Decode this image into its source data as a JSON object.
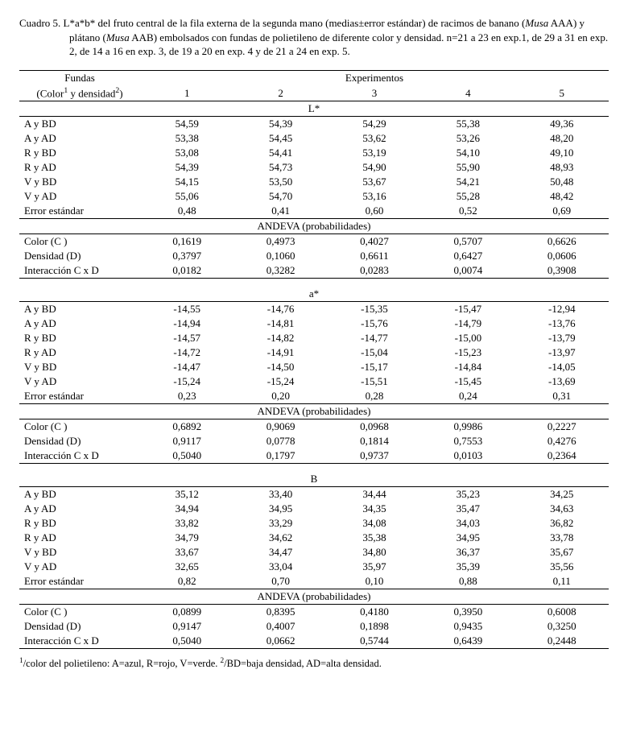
{
  "caption": {
    "label": "Cuadro 5.",
    "text_html": "L*a*b* del fruto central de la fila externa de la segunda mano (medias±error estándar) de racimos de banano (<em>Musa</em> AAA) y plátano (<em>Musa</em> AAB) embolsados con fundas de polietileno de diferente color y densidad. n=21 a 23 en exp.1, de 29 a 31 en exp. 2, de 14 a 16 en exp. 3, de 19 a 20 en exp. 4 y de 21 a 24 en exp. 5."
  },
  "header": {
    "col1_l1": "Fundas",
    "col1_l2_html": "(Color<sup>1</sup> y densidad<sup>2</sup>)",
    "group": "Experimentos",
    "cols": [
      "1",
      "2",
      "3",
      "4",
      "5"
    ]
  },
  "sections": [
    {
      "title": "L*",
      "rows": [
        {
          "label": "A y BD",
          "v": [
            "54,59",
            "54,39",
            "54,29",
            "55,38",
            "49,36"
          ]
        },
        {
          "label": "A y AD",
          "v": [
            "53,38",
            "54,45",
            "53,62",
            "53,26",
            "48,20"
          ]
        },
        {
          "label": "R y BD",
          "v": [
            "53,08",
            "54,41",
            "53,19",
            "54,10",
            "49,10"
          ]
        },
        {
          "label": "R y AD",
          "v": [
            "54,39",
            "54,73",
            "54,90",
            "55,90",
            "48,93"
          ]
        },
        {
          "label": "V y BD",
          "v": [
            "54,15",
            "53,50",
            "53,67",
            "54,21",
            "50,48"
          ]
        },
        {
          "label": "V y AD",
          "v": [
            "55,06",
            "54,70",
            "53,16",
            "55,28",
            "48,42"
          ]
        },
        {
          "label": "Error estándar",
          "v": [
            "0,48",
            "0,41",
            "0,60",
            "0,52",
            "0,69"
          ]
        }
      ],
      "andeva_title": "ANDEVA (probabilidades)",
      "andeva": [
        {
          "label": "Color (C )",
          "v": [
            "0,1619",
            "0,4973",
            "0,4027",
            "0,5707",
            "0,6626"
          ]
        },
        {
          "label": "Densidad (D)",
          "v": [
            "0,3797",
            "0,1060",
            "0,6611",
            "0,6427",
            "0,0606"
          ]
        },
        {
          "label": "Interacción C x D",
          "v": [
            "0,0182",
            "0,3282",
            "0,0283",
            "0,0074",
            "0,3908"
          ]
        }
      ]
    },
    {
      "title": "a*",
      "rows": [
        {
          "label": "A y BD",
          "v": [
            "-14,55",
            "-14,76",
            "-15,35",
            "-15,47",
            "-12,94"
          ]
        },
        {
          "label": "A y AD",
          "v": [
            "-14,94",
            "-14,81",
            "-15,76",
            "-14,79",
            "-13,76"
          ]
        },
        {
          "label": "R y BD",
          "v": [
            "-14,57",
            "-14,82",
            "-14,77",
            "-15,00",
            "-13,79"
          ]
        },
        {
          "label": "R y AD",
          "v": [
            "-14,72",
            "-14,91",
            "-15,04",
            "-15,23",
            "-13,97"
          ]
        },
        {
          "label": "V y BD",
          "v": [
            "-14,47",
            "-14,50",
            "-15,17",
            "-14,84",
            "-14,05"
          ]
        },
        {
          "label": "V y AD",
          "v": [
            "-15,24",
            "-15,24",
            "-15,51",
            "-15,45",
            "-13,69"
          ]
        },
        {
          "label": "Error estándar",
          "v": [
            "0,23",
            "0,20",
            "0,28",
            "0,24",
            "0,31"
          ]
        }
      ],
      "andeva_title": "ANDEVA (probabilidades)",
      "andeva": [
        {
          "label": "Color (C )",
          "v": [
            "0,6892",
            "0,9069",
            "0,0968",
            "0,9986",
            "0,2227"
          ]
        },
        {
          "label": "Densidad (D)",
          "v": [
            "0,9117",
            "0,0778",
            "0,1814",
            "0,7553",
            "0,4276"
          ]
        },
        {
          "label": "Interacción C x D",
          "v": [
            "0,5040",
            "0,1797",
            "0,9737",
            "0,0103",
            "0,2364"
          ]
        }
      ]
    },
    {
      "title": "B",
      "rows": [
        {
          "label": "A y BD",
          "v": [
            "35,12",
            "33,40",
            "34,44",
            "35,23",
            "34,25"
          ]
        },
        {
          "label": "A y AD",
          "v": [
            "34,94",
            "34,95",
            "34,35",
            "35,47",
            "34,63"
          ]
        },
        {
          "label": "R y BD",
          "v": [
            "33,82",
            "33,29",
            "34,08",
            "34,03",
            "36,82"
          ]
        },
        {
          "label": "R y AD",
          "v": [
            "34,79",
            "34,62",
            "35,38",
            "34,95",
            "33,78"
          ]
        },
        {
          "label": "V y BD",
          "v": [
            "33,67",
            "34,47",
            "34,80",
            "36,37",
            "35,67"
          ]
        },
        {
          "label": "V y AD",
          "v": [
            "32,65",
            "33,04",
            "35,97",
            "35,39",
            "35,56"
          ]
        },
        {
          "label": "Error estándar",
          "v": [
            "0,82",
            "0,70",
            "0,10",
            "0,88",
            "0,11"
          ]
        }
      ],
      "andeva_title": "ANDEVA (probabilidades)",
      "andeva": [
        {
          "label": "Color (C )",
          "v": [
            "0,0899",
            "0,8395",
            "0,4180",
            "0,3950",
            "0,6008"
          ]
        },
        {
          "label": "Densidad (D)",
          "v": [
            "0,9147",
            "0,4007",
            "0,1898",
            "0,9435",
            "0,3250"
          ]
        },
        {
          "label": "Interacción C x D",
          "v": [
            "0,5040",
            "0,0662",
            "0,5744",
            "0,6439",
            "0,2448"
          ]
        }
      ]
    }
  ],
  "footnote_html": "<sup>1</sup>/color del polietileno: A=azul, R=rojo, V=verde. <sup>2</sup>/BD=baja densidad, AD=alta densidad."
}
